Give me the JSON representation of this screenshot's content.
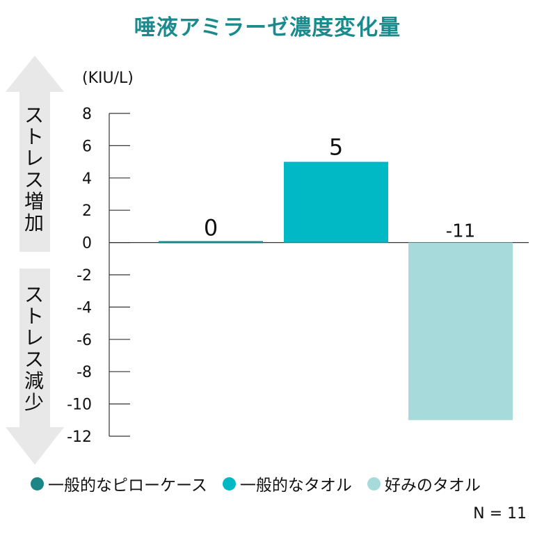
{
  "colors": {
    "title": "#1a8a8c",
    "arrow": "#e8e8e8",
    "axis": "#333333",
    "series": [
      "#1c8585",
      "#00b9c4",
      "#a6dadb"
    ]
  },
  "chart_data": {
    "type": "bar",
    "title": "唾液アミラーゼ濃度変化量",
    "ylabel": "(KIU/L)",
    "categories": [
      "一般的なピローケース",
      "一般的なタオル",
      "好みのタオル"
    ],
    "values": [
      0,
      5,
      -11
    ],
    "data_labels": [
      "0",
      "5",
      "-11"
    ],
    "ylim": [
      -12,
      8
    ],
    "yticks": [
      8,
      6,
      4,
      2,
      0,
      -2,
      -4,
      -6,
      -8,
      -10,
      -12
    ],
    "ytick_labels": [
      "8",
      "6",
      "4",
      "2",
      "0",
      "-2",
      "-4",
      "-6",
      "-8",
      "-10",
      "-12"
    ],
    "legend": "bottom",
    "grid": false
  },
  "side_labels": {
    "increase": "ストレス増加",
    "decrease": "ストレス減少"
  },
  "footnote": "N = 11"
}
